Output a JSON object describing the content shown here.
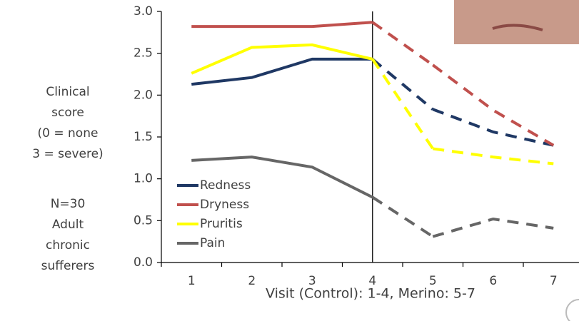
{
  "chart_data": {
    "type": "line",
    "y_label_lines": [
      "Clinical",
      "score",
      "(0 = none",
      "3 = severe)"
    ],
    "note_lines": [
      "N=30",
      "Adult",
      "chronic",
      "sufferers"
    ],
    "x_label": "Visit (Control): 1-4, Merino: 5-7",
    "categories": [
      "1",
      "2",
      "3",
      "4",
      "5",
      "6",
      "7"
    ],
    "series": [
      {
        "name": "Redness",
        "color": "#1f3864",
        "values": [
          2.13,
          2.21,
          2.43,
          2.43,
          1.83,
          1.56,
          1.4
        ]
      },
      {
        "name": "Dryness",
        "color": "#c0504d",
        "values": [
          2.82,
          2.82,
          2.82,
          2.87,
          2.36,
          1.82,
          1.4
        ]
      },
      {
        "name": "Pruritis",
        "color": "#ffff00",
        "values": [
          2.26,
          2.57,
          2.6,
          2.43,
          1.36,
          1.26,
          1.18
        ]
      },
      {
        "name": "Pain",
        "color": "#666666",
        "values": [
          1.22,
          1.26,
          1.14,
          0.78,
          0.31,
          0.52,
          0.41
        ]
      }
    ],
    "reference_line": {
      "x": "4",
      "dashed_after": true
    },
    "ylim": [
      0,
      3
    ],
    "yticks": [
      {
        "value": 0,
        "label": "0.0"
      },
      {
        "value": 0.5,
        "label": "0.5"
      },
      {
        "value": 1,
        "label": "1.0"
      },
      {
        "value": 1.5,
        "label": "1.5"
      },
      {
        "value": 2,
        "label": "2.0"
      },
      {
        "value": 2.5,
        "label": "2.5"
      },
      {
        "value": 3,
        "label": "3.0"
      }
    ],
    "legend": "lower left"
  }
}
